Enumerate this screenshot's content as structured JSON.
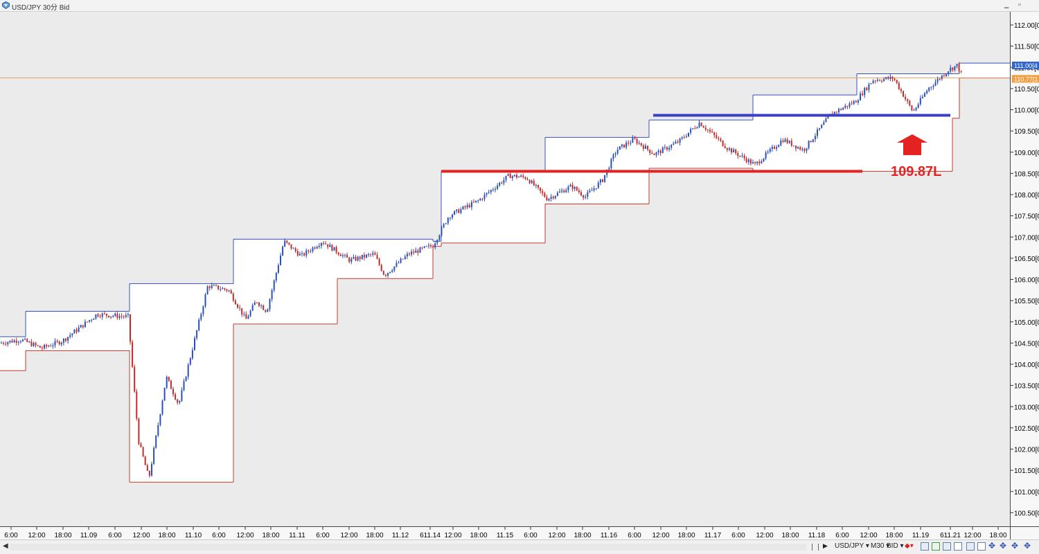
{
  "window": {
    "title": "USD/JPY 30分 Bid",
    "minimize_glyph": "‗",
    "restore_glyph": "▫"
  },
  "colors": {
    "background": "#ebebeb",
    "bull": "#2a4fb5",
    "bear": "#c62828",
    "box_top": "#3550b8",
    "box_bottom": "#c0392b",
    "current_price_line": "#e0a060",
    "annotation_red": "#e52222",
    "support_blue": "#3b3fc4"
  },
  "chart_data": {
    "type": "candlestick",
    "symbol": "USD/JPY",
    "timeframe": "M30",
    "price_axis": {
      "ticks": [
        "112.00[0",
        "111.50[0",
        "111.00[0",
        "110.50[0",
        "110.00[0",
        "109.50[0",
        "109.00[0",
        "108.50[0",
        "108.00[0",
        "107.50[0",
        "107.00[0",
        "106.50[0",
        "106.00[0",
        "105.50[0",
        "105.00[0",
        "104.50[0",
        "104.00[0",
        "103.50[0",
        "103.00[0",
        "102.50[0",
        "102.00[0",
        "101.50[0",
        "101.00[0",
        "100.50[0"
      ],
      "min": 100.25,
      "max": 112.15
    },
    "time_axis": {
      "ticks": [
        "6:00",
        "12:00",
        "18:00",
        "11.09",
        "6:00",
        "12:00",
        "18:00",
        "11.10",
        "6:00",
        "12:00",
        "18:00",
        "11.11",
        "6:00",
        "12:00",
        "18:00",
        "11.12",
        "611.14",
        "12:00",
        "18:00",
        "11.15",
        "6:00",
        "12:00",
        "18:00",
        "11.16",
        "6:00",
        "12:00",
        "18:00",
        "11.17",
        "6:00",
        "12:00",
        "18:00",
        "11.18",
        "6:00",
        "12:00",
        "18:00",
        "11.19",
        "611.21",
        "12:00",
        "18:00"
      ]
    },
    "current_price": {
      "ask_label": "111.00[4",
      "bid_label": "110.77[1",
      "bid": 110.77
    },
    "daily_ranges": [
      {
        "high": 104.65,
        "low": 103.85
      },
      {
        "high": 105.25,
        "low": 104.32
      },
      {
        "high": 105.9,
        "low": 101.22
      },
      {
        "high": 106.95,
        "low": 104.95
      },
      {
        "high": 106.95,
        "low": 106.02
      },
      {
        "high": 106.9,
        "low": 106.78
      },
      {
        "high": 108.55,
        "low": 106.86
      },
      {
        "high": 109.35,
        "low": 107.78
      },
      {
        "high": 109.76,
        "low": 108.62
      },
      {
        "high": 110.35,
        "low": 108.55
      },
      {
        "high": 110.85,
        "low": 108.55
      },
      {
        "high": 110.85,
        "low": 109.8
      },
      {
        "high": 111.1,
        "low": 110.75
      }
    ],
    "swings": [
      {
        "t": 0,
        "p": 104.5
      },
      {
        "t": 30,
        "p": 104.58
      },
      {
        "t": 60,
        "p": 104.38
      },
      {
        "t": 90,
        "p": 104.55
      },
      {
        "t": 110,
        "p": 104.8
      },
      {
        "t": 140,
        "p": 105.18
      },
      {
        "t": 185,
        "p": 105.12
      },
      {
        "t": 200,
        "p": 102.2
      },
      {
        "t": 215,
        "p": 101.3
      },
      {
        "t": 240,
        "p": 103.7
      },
      {
        "t": 258,
        "p": 103.05
      },
      {
        "t": 300,
        "p": 105.85
      },
      {
        "t": 330,
        "p": 105.75
      },
      {
        "t": 355,
        "p": 105.05
      },
      {
        "t": 370,
        "p": 105.5
      },
      {
        "t": 385,
        "p": 105.25
      },
      {
        "t": 410,
        "p": 106.9
      },
      {
        "t": 435,
        "p": 106.55
      },
      {
        "t": 465,
        "p": 106.9
      },
      {
        "t": 505,
        "p": 106.45
      },
      {
        "t": 540,
        "p": 106.6
      },
      {
        "t": 555,
        "p": 106.1
      },
      {
        "t": 590,
        "p": 106.6
      },
      {
        "t": 625,
        "p": 106.8
      },
      {
        "t": 648,
        "p": 107.5
      },
      {
        "t": 690,
        "p": 107.85
      },
      {
        "t": 735,
        "p": 108.45
      },
      {
        "t": 760,
        "p": 108.4
      },
      {
        "t": 790,
        "p": 107.9
      },
      {
        "t": 825,
        "p": 108.2
      },
      {
        "t": 845,
        "p": 107.95
      },
      {
        "t": 870,
        "p": 108.35
      },
      {
        "t": 890,
        "p": 109.05
      },
      {
        "t": 915,
        "p": 109.3
      },
      {
        "t": 945,
        "p": 108.95
      },
      {
        "t": 980,
        "p": 109.25
      },
      {
        "t": 1010,
        "p": 109.7
      },
      {
        "t": 1050,
        "p": 109.1
      },
      {
        "t": 1090,
        "p": 108.7
      },
      {
        "t": 1130,
        "p": 109.3
      },
      {
        "t": 1160,
        "p": 109.05
      },
      {
        "t": 1200,
        "p": 109.9
      },
      {
        "t": 1235,
        "p": 110.2
      },
      {
        "t": 1260,
        "p": 110.7
      },
      {
        "t": 1290,
        "p": 110.75
      },
      {
        "t": 1318,
        "p": 109.95
      },
      {
        "t": 1340,
        "p": 110.5
      },
      {
        "t": 1370,
        "p": 110.95
      },
      {
        "t": 1382,
        "p": 111.05
      },
      {
        "t": 1390,
        "p": 110.77
      }
    ]
  },
  "annotations": {
    "price_label": "109.87L",
    "support_level": 109.87,
    "resistance_level": 108.55
  },
  "statusbar": {
    "left_arrow": "◀",
    "symbol": "USD/JPY",
    "timeframe": "M30",
    "price_type": "BID",
    "dropdown_glyph": "▾"
  }
}
